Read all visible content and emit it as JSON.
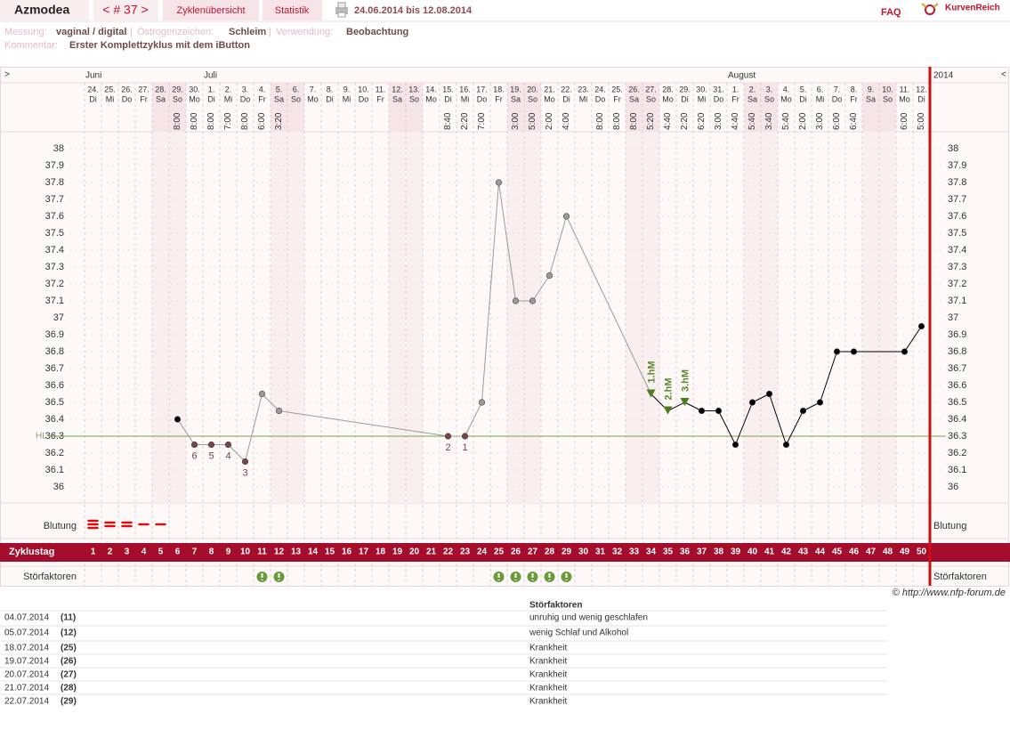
{
  "header": {
    "user": "Azmodea",
    "cycle_nav": "< # 37 >",
    "tabs": [
      "Zyklenübersicht",
      "Statistik"
    ],
    "period": "24.06.2014 bis 12.08.2014",
    "faq": "FAQ",
    "brand": "KurvenReich"
  },
  "info": {
    "measurement_label": "Messung:",
    "measurement": "vaginal / digital",
    "separator": "|",
    "estrogen_label": "Östrogenzeichen:",
    "estrogen": "Schleim",
    "usage_label": "Verwendung:",
    "usage": "Beobachtung",
    "comment_label": "Kommentar:",
    "comment": "Erster Komplettzyklus mit dem iButton"
  },
  "chart_data": {
    "type": "line",
    "nav_prev": ">",
    "nav_next": "<",
    "year": "2014",
    "months": [
      {
        "label": "Juni",
        "day": 1
      },
      {
        "label": "Juli",
        "day": 8
      },
      {
        "label": "August",
        "day": 39
      }
    ],
    "dates": [
      "24.",
      "25.",
      "26.",
      "27.",
      "28.",
      "29.",
      "30.",
      "1.",
      "2.",
      "3.",
      "4.",
      "5.",
      "6.",
      "7.",
      "8.",
      "9.",
      "10.",
      "11.",
      "12.",
      "13.",
      "14.",
      "15.",
      "16.",
      "17.",
      "18.",
      "19.",
      "20.",
      "21.",
      "22.",
      "23.",
      "24.",
      "25.",
      "26.",
      "27.",
      "28.",
      "29.",
      "30.",
      "31.",
      "1.",
      "2.",
      "3.",
      "4.",
      "5.",
      "6.",
      "7.",
      "8.",
      "9.",
      "10.",
      "11.",
      "12."
    ],
    "weekdays": [
      "Di",
      "Mi",
      "Do",
      "Fr",
      "Sa",
      "So",
      "Mo",
      "Di",
      "Mi",
      "Do",
      "Fr",
      "Sa",
      "So",
      "Mo",
      "Di",
      "Mi",
      "Do",
      "Fr",
      "Sa",
      "So",
      "Mo",
      "Di",
      "Mi",
      "Do",
      "Fr",
      "Sa",
      "So",
      "Mo",
      "Di",
      "Mi",
      "Do",
      "Fr",
      "Sa",
      "So",
      "Mo",
      "Di",
      "Mi",
      "Do",
      "Fr",
      "Sa",
      "So",
      "Mo",
      "Di",
      "Mi",
      "Do",
      "Fr",
      "Sa",
      "So",
      "Mo",
      "Di"
    ],
    "times": [
      null,
      null,
      null,
      null,
      null,
      "8:00",
      "8:00",
      "8:00",
      "7:00",
      "8:00",
      "6:00",
      "3:20",
      null,
      null,
      null,
      null,
      null,
      null,
      null,
      null,
      null,
      "8:40",
      "2:20",
      "7:00",
      null,
      "3:00",
      "5:00",
      "2:00",
      "4:00",
      null,
      "8:00",
      "8:00",
      "8:00",
      "5:20",
      "4:40",
      "2:20",
      "6:20",
      "3:00",
      "4:40",
      "5:40",
      "3:40",
      "5:40",
      "2:00",
      "3:00",
      "6:00",
      "6:40",
      null,
      null,
      "6:00",
      "5:00"
    ],
    "weekend_days": [
      5,
      6,
      12,
      13,
      19,
      20,
      26,
      27,
      33,
      34,
      40,
      41,
      47,
      48
    ],
    "xlim": [
      0.5,
      50.5
    ],
    "ylim": [
      35.9,
      38.1
    ],
    "yticks": [
      36,
      36.1,
      36.2,
      36.3,
      36.4,
      36.5,
      36.6,
      36.7,
      36.8,
      36.9,
      37,
      37.1,
      37.2,
      37.3,
      37.4,
      37.5,
      37.6,
      37.7,
      37.8,
      37.9,
      38
    ],
    "hl": {
      "label": "HL",
      "value": 36.3,
      "color": "#7aa34a"
    },
    "series": [
      {
        "x": [
          6,
          7,
          8,
          9,
          10,
          11,
          12,
          22,
          23,
          24,
          25,
          26,
          27,
          28,
          29,
          34,
          35,
          36,
          37,
          38,
          39,
          40,
          41,
          42,
          43,
          44,
          45,
          46,
          49,
          50
        ],
        "values": [
          36.4,
          36.25,
          36.25,
          36.25,
          36.15,
          36.55,
          36.45,
          36.3,
          36.3,
          36.5,
          37.8,
          37.1,
          37.1,
          37.25,
          37.6,
          36.55,
          36.45,
          36.5,
          36.45,
          36.45,
          36.25,
          36.5,
          36.55,
          36.25,
          36.45,
          36.5,
          36.8,
          36.8,
          36.8,
          36.95
        ],
        "point_colors": [
          "#000000",
          "#7a4444",
          "#7a4444",
          "#7a4444",
          "#7a4444",
          "#9a9a9a",
          "#9a9a9a",
          "#7a4444",
          "#7a4444",
          "#9a9a9a",
          "#9a9a9a",
          "#9a9a9a",
          "#9a9a9a",
          "#9a9a9a",
          "#9a9a9a",
          "#4e7d1e",
          "#4e7d1e",
          "#4e7d1e",
          "#000000",
          "#000000",
          "#000000",
          "#000000",
          "#000000",
          "#000000",
          "#000000",
          "#000000",
          "#000000",
          "#000000",
          "#000000",
          "#000000"
        ],
        "line_colors": [
          "#9a9a9a",
          "#9a9a9a",
          "#9a9a9a",
          "#9a9a9a",
          "#9a9a9a",
          "#9a9a9a",
          "#9a9a9a",
          "#9a9a9a",
          "#9a9a9a",
          "#9a9a9a",
          "#9a9a9a",
          "#9a9a9a",
          "#9a9a9a",
          "#9a9a9a",
          "#9a9a9a",
          "#000000",
          "#000000",
          "#000000",
          "#000000",
          "#000000",
          "#000000",
          "#000000",
          "#000000",
          "#000000",
          "#000000",
          "#000000",
          "#000000",
          "#000000",
          "#000000"
        ],
        "point_labels": [
          null,
          "6",
          "5",
          "4",
          "3",
          null,
          null,
          "2",
          "1",
          null,
          null,
          null,
          null,
          null,
          null,
          null,
          null,
          null,
          null,
          null,
          null,
          null,
          null,
          null,
          null,
          null,
          null,
          null,
          null,
          null
        ]
      }
    ],
    "annotations": [
      {
        "x": 34,
        "label": "1.hM"
      },
      {
        "x": 35,
        "label": "2.hM"
      },
      {
        "x": 36,
        "label": "3.hM"
      }
    ],
    "annotation_color": "#5a8a2a",
    "bleeding_label": "Blutung",
    "bleeding": [
      3,
      2,
      2,
      1,
      1
    ],
    "cycle_day_label": "Zyklustag",
    "cycle_days": [
      1,
      2,
      3,
      4,
      5,
      6,
      7,
      8,
      9,
      10,
      11,
      12,
      13,
      14,
      15,
      16,
      17,
      18,
      19,
      20,
      21,
      22,
      23,
      24,
      25,
      26,
      27,
      28,
      29,
      30,
      31,
      32,
      33,
      34,
      35,
      36,
      37,
      38,
      39,
      40,
      41,
      42,
      43,
      44,
      45,
      46,
      47,
      48,
      49,
      50
    ],
    "disturbance_label": "Störfaktoren",
    "disturbance_days": [
      11,
      12,
      25,
      26,
      27,
      28,
      29
    ]
  },
  "copyright": "© http://www.nfp-forum.de",
  "disturbance_table": {
    "header": "Störfaktoren",
    "rows": [
      [
        "04.07.2014",
        "(11)",
        "unruhig und wenig geschlafen"
      ],
      [
        "05.07.2014",
        "(12)",
        "wenig Schlaf und Alkohol"
      ],
      [
        "18.07.2014",
        "(25)",
        "Krankheit"
      ],
      [
        "19.07.2014",
        "(26)",
        "Krankheit"
      ],
      [
        "20.07.2014",
        "(27)",
        "Krankheit"
      ],
      [
        "21.07.2014",
        "(28)",
        "Krankheit"
      ],
      [
        "22.07.2014",
        "(29)",
        "Krankheit"
      ]
    ]
  }
}
